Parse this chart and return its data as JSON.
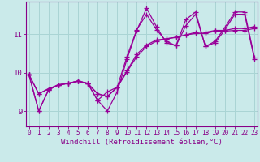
{
  "xlabel": "Windchill (Refroidissement éolien,°C)",
  "bg_color": "#caeaea",
  "grid_color": "#aad4d4",
  "line_color": "#990099",
  "x_ticks": [
    0,
    1,
    2,
    3,
    4,
    5,
    6,
    7,
    8,
    9,
    10,
    11,
    12,
    13,
    14,
    15,
    16,
    17,
    18,
    19,
    20,
    21,
    22,
    23
  ],
  "y_ticks": [
    9,
    10,
    11
  ],
  "ylim": [
    8.6,
    11.85
  ],
  "xlim": [
    -0.3,
    23.3
  ],
  "series": [
    [
      9.95,
      9.0,
      9.55,
      9.68,
      9.72,
      9.78,
      9.72,
      9.28,
      9.0,
      9.5,
      10.35,
      11.1,
      11.68,
      11.2,
      10.78,
      10.7,
      11.22,
      11.52,
      10.68,
      10.78,
      11.12,
      11.52,
      11.52,
      10.35
    ],
    [
      9.95,
      9.45,
      9.58,
      9.68,
      9.72,
      9.78,
      9.72,
      9.45,
      9.38,
      9.62,
      10.02,
      10.42,
      10.68,
      10.82,
      10.88,
      10.92,
      10.98,
      11.02,
      11.02,
      11.08,
      11.08,
      11.1,
      11.1,
      11.15
    ],
    [
      9.95,
      9.45,
      9.58,
      9.68,
      9.72,
      9.78,
      9.72,
      9.45,
      9.38,
      9.62,
      10.05,
      10.48,
      10.72,
      10.85,
      10.88,
      10.92,
      10.98,
      11.05,
      11.05,
      11.1,
      11.1,
      11.15,
      11.15,
      11.2
    ],
    [
      9.95,
      9.0,
      9.55,
      9.68,
      9.72,
      9.78,
      9.72,
      9.28,
      9.5,
      9.62,
      10.42,
      11.12,
      11.52,
      11.12,
      10.82,
      10.7,
      11.38,
      11.58,
      10.68,
      10.82,
      11.18,
      11.58,
      11.58,
      10.4
    ]
  ],
  "marker": "+",
  "markersize": 4,
  "linewidth": 0.9,
  "tick_fontsize": 5.5,
  "xlabel_fontsize": 6.5,
  "axis_color": "#880088",
  "spine_color": "#880088"
}
